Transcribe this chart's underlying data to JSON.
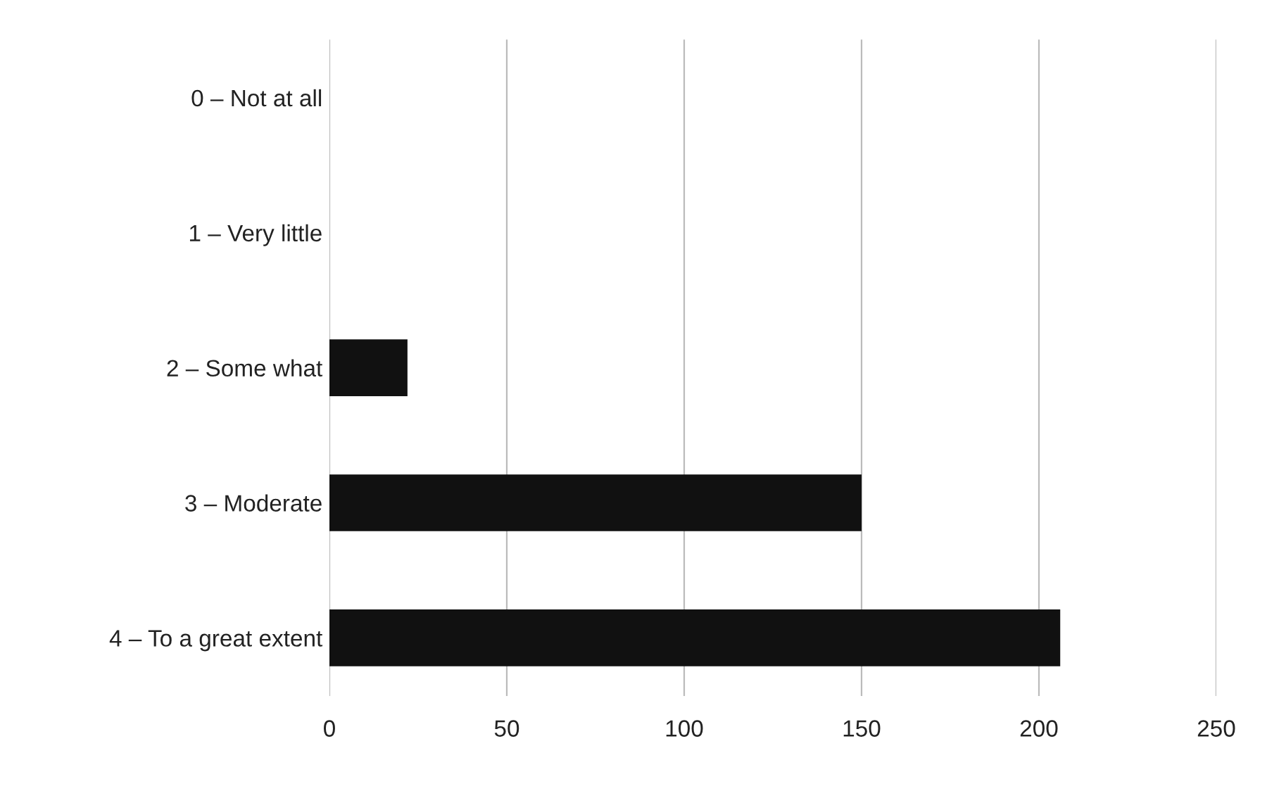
{
  "chart_data": {
    "type": "bar",
    "orientation": "horizontal",
    "categories": [
      "0 – Not at all",
      "1 – Very little",
      "2 – Some what",
      "3 – Moderate",
      "4 – To a great extent"
    ],
    "values": [
      0,
      0,
      22,
      150,
      206
    ],
    "color": "#111111",
    "xlim": [
      0,
      250
    ],
    "xticks": [
      0,
      50,
      100,
      150,
      200,
      250
    ],
    "grid": "x"
  }
}
